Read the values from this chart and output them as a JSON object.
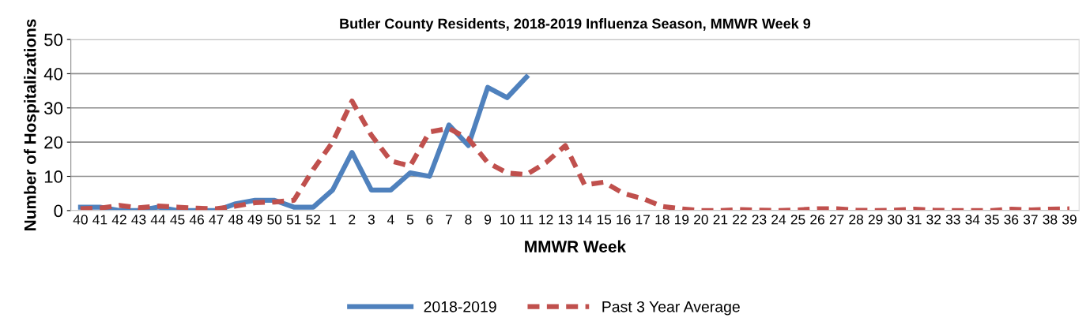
{
  "chart_data": {
    "type": "line",
    "title": "Butler County Residents, 2018-2019 Influenza Season, MMWR Week 9",
    "xlabel": "MMWR Week",
    "ylabel": "Number of Hospitalizations",
    "categories": [
      "40",
      "41",
      "42",
      "43",
      "44",
      "45",
      "46",
      "47",
      "48",
      "49",
      "50",
      "51",
      "52",
      "1",
      "2",
      "3",
      "4",
      "5",
      "6",
      "7",
      "8",
      "9",
      "10",
      "11",
      "12",
      "13",
      "14",
      "15",
      "16",
      "17",
      "18",
      "19",
      "20",
      "21",
      "22",
      "23",
      "24",
      "25",
      "26",
      "27",
      "28",
      "29",
      "30",
      "31",
      "32",
      "33",
      "34",
      "35",
      "36",
      "37",
      "38",
      "39"
    ],
    "series": [
      {
        "name": "2018-2019",
        "color": "#4f81bd",
        "line_style": "solid",
        "values": [
          1,
          1,
          0,
          0,
          1,
          0,
          0,
          0,
          2,
          3,
          3,
          1,
          1,
          6,
          17,
          6,
          6,
          11,
          10,
          25,
          19,
          36,
          33,
          39,
          null,
          null,
          null,
          null,
          null,
          null,
          null,
          null,
          null,
          null,
          null,
          null,
          null,
          null,
          null,
          null,
          null,
          null,
          null,
          null,
          null,
          null,
          null,
          null,
          null,
          null,
          null,
          null
        ]
      },
      {
        "name": "Past 3 Year Average",
        "color": "#c0504d",
        "line_style": "dashed",
        "values": [
          0.5,
          0.7,
          1.5,
          0.8,
          1.3,
          1,
          0.7,
          0.5,
          1.3,
          2.3,
          2.5,
          3,
          12,
          20,
          32,
          22,
          14.5,
          13,
          23,
          24,
          21,
          14,
          11,
          10.5,
          14,
          19,
          7.5,
          8.3,
          5,
          3.5,
          1.2,
          0.5,
          0,
          0,
          0.3,
          0.1,
          0,
          0.2,
          0.5,
          0.5,
          0.1,
          0,
          0.1,
          0.4,
          0.1,
          0,
          0,
          0,
          0.4,
          0.2,
          0.4,
          0.5
        ]
      }
    ],
    "ylim": [
      0,
      50
    ],
    "yticks": [
      0,
      10,
      20,
      30,
      40,
      50
    ],
    "grid": "y",
    "legend": "bottom",
    "marker": "none"
  }
}
